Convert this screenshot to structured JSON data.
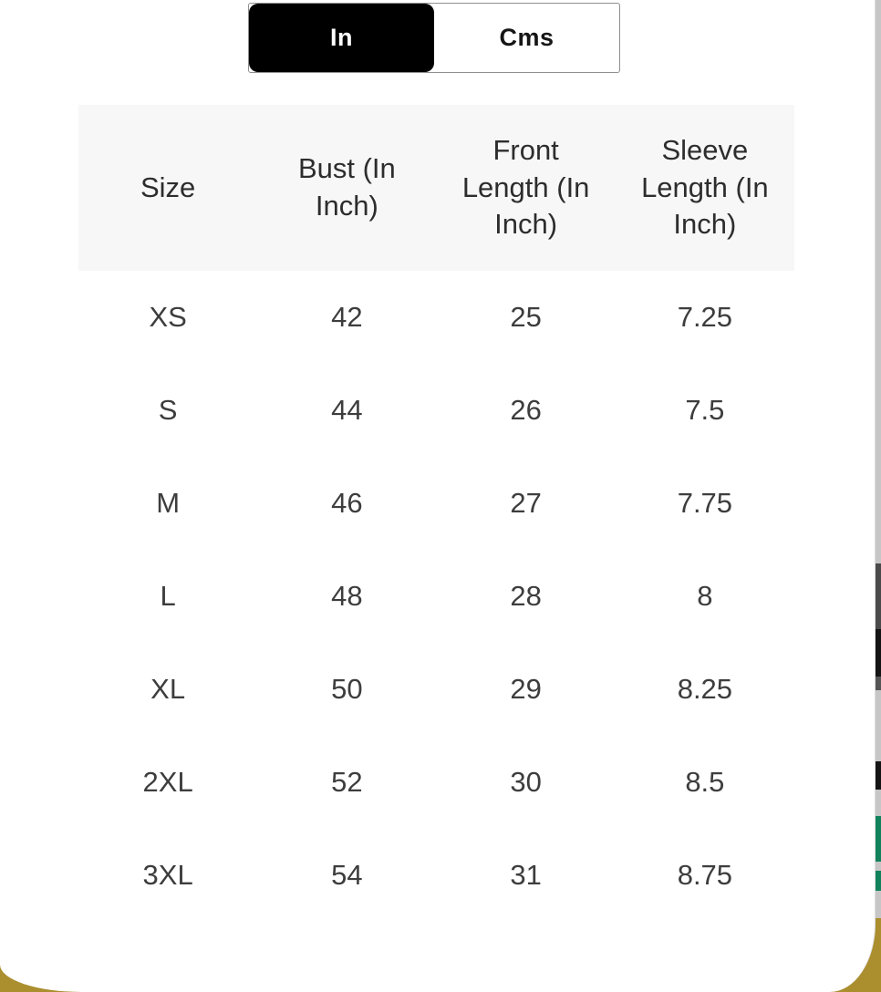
{
  "unit_toggle": {
    "in_label": "In",
    "cms_label": "Cms",
    "selected": "In"
  },
  "size_chart": {
    "columns": [
      "Size",
      "Bust (In Inch)",
      "Front Length (In Inch)",
      "Sleeve Length (In Inch)"
    ],
    "rows": [
      [
        "XS",
        "42",
        "25",
        "7.25"
      ],
      [
        "S",
        "44",
        "26",
        "7.5"
      ],
      [
        "M",
        "46",
        "27",
        "7.75"
      ],
      [
        "L",
        "48",
        "28",
        "8"
      ],
      [
        "XL",
        "50",
        "29",
        "8.25"
      ],
      [
        "2XL",
        "52",
        "30",
        "8.5"
      ],
      [
        "3XL",
        "54",
        "31",
        "8.75"
      ]
    ]
  },
  "colors": {
    "toggle_active_bg": "#000000",
    "toggle_active_text": "#ffffff",
    "header_band_bg": "#f7f7f7",
    "text_primary": "#2d2d2d",
    "backdrop_gold": "#ab8e2e",
    "peek_green": "#12825c",
    "peek_dark": "#4a4a4a",
    "peek_black": "#141414",
    "peek_track_gray": "#c6c6c6"
  }
}
